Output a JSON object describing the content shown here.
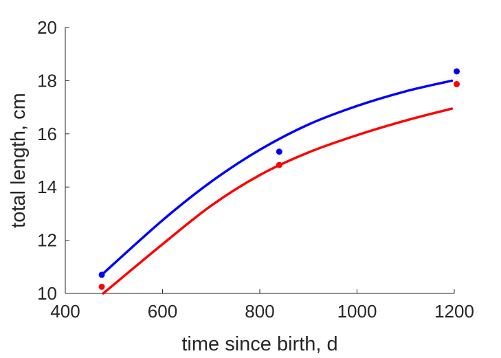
{
  "chart_data": {
    "type": "line",
    "xlabel": "time since birth, d",
    "ylabel": "total length, cm",
    "xlim": [
      400,
      1200
    ],
    "ylim": [
      10,
      20
    ],
    "xticks": [
      400,
      600,
      800,
      1000,
      1200
    ],
    "yticks": [
      10,
      12,
      14,
      16,
      18,
      20
    ],
    "xtick_labels": [
      "400",
      "600",
      "800",
      "1000",
      "1200"
    ],
    "ytick_labels": [
      "10",
      "12",
      "14",
      "16",
      "18",
      "20"
    ],
    "grid": false,
    "box": "left-and-bottom axes only",
    "series": [
      {
        "color": "#0000ff",
        "points": [
          {
            "x": 475,
            "y": 10.7
          },
          {
            "x": 840,
            "y": 15.33
          },
          {
            "x": 1205,
            "y": 18.35
          }
        ],
        "fit_curve": [
          {
            "x": 475,
            "y": 10.7
          },
          {
            "x": 600,
            "y": 12.75
          },
          {
            "x": 700,
            "y": 14.2
          },
          {
            "x": 800,
            "y": 15.4
          },
          {
            "x": 900,
            "y": 16.35
          },
          {
            "x": 1000,
            "y": 17.05
          },
          {
            "x": 1100,
            "y": 17.6
          },
          {
            "x": 1195,
            "y": 18.0
          }
        ]
      },
      {
        "color": "#ff0000",
        "points": [
          {
            "x": 475,
            "y": 10.25
          },
          {
            "x": 840,
            "y": 14.83
          },
          {
            "x": 1205,
            "y": 17.87
          }
        ],
        "fit_curve": [
          {
            "x": 478,
            "y": 10.0
          },
          {
            "x": 600,
            "y": 11.85
          },
          {
            "x": 700,
            "y": 13.3
          },
          {
            "x": 800,
            "y": 14.45
          },
          {
            "x": 900,
            "y": 15.3
          },
          {
            "x": 1000,
            "y": 15.95
          },
          {
            "x": 1100,
            "y": 16.5
          },
          {
            "x": 1195,
            "y": 16.95
          }
        ]
      }
    ]
  }
}
